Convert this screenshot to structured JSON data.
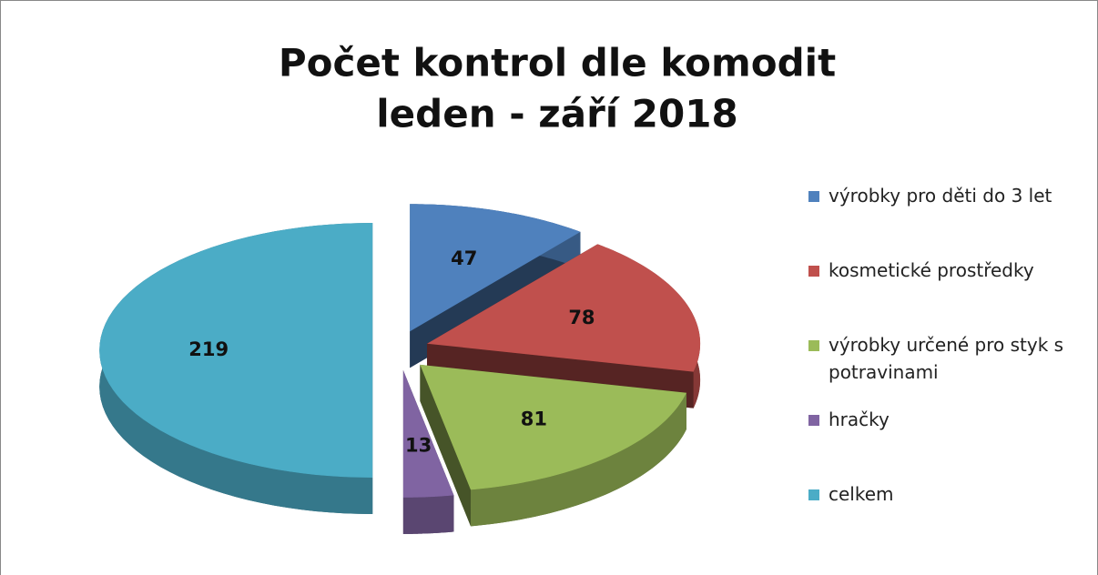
{
  "chart_data": {
    "type": "pie3d",
    "title": "Počet kontrol dle komodit",
    "subtitle": "leden - září 2018",
    "categories": [
      "výrobky pro děti do 3 let",
      "kosmetické prostředky",
      "výrobky určené pro styk s potravinami",
      "hračky",
      "celkem"
    ],
    "values": [
      47,
      78,
      81,
      13,
      219
    ],
    "colors": [
      "#4f81bd",
      "#c0504d",
      "#9bbb59",
      "#8064a2",
      "#4bacc6"
    ],
    "legend": "right"
  }
}
